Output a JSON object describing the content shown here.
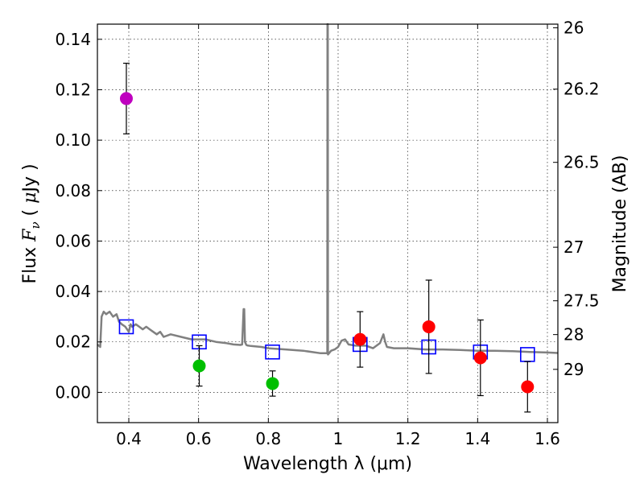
{
  "chart_data": {
    "type": "scatter",
    "xlabel": "Wavelength  λ (μm)",
    "ylabel": "Flux  F_ν  ( μJy )",
    "ylabel_right": "Magnitude (AB)",
    "xlim": [
      0.31,
      1.63
    ],
    "ylim": [
      -0.012,
      0.146
    ],
    "grid": true,
    "x_ticks": [
      0.4,
      0.6,
      0.8,
      1.0,
      1.2,
      1.4,
      1.6
    ],
    "x_tick_labels": [
      "0.4",
      "0.6",
      "0.8",
      "1",
      "1.2",
      "1.4",
      "1.6"
    ],
    "y_ticks": [
      0.0,
      0.02,
      0.04,
      0.06,
      0.08,
      0.1,
      0.12,
      0.14
    ],
    "y_tick_labels": [
      "0.00",
      "0.02",
      "0.04",
      "0.06",
      "0.08",
      "0.10",
      "0.12",
      "0.14"
    ],
    "mag_ticks": [
      26,
      26.2,
      26.5,
      27,
      27.5,
      28,
      29
    ],
    "mag_tick_labels": [
      "26",
      "26.2",
      "26.5",
      "27",
      "27.5",
      "28",
      "29"
    ],
    "observed": [
      {
        "x": 0.393,
        "y": 0.1165,
        "err": 0.014,
        "color": "#bf00bf"
      },
      {
        "x": 0.602,
        "y": 0.0105,
        "err": 0.008,
        "color": "#00bf00"
      },
      {
        "x": 0.812,
        "y": 0.0035,
        "err": 0.005,
        "color": "#00bf00"
      },
      {
        "x": 1.063,
        "y": 0.021,
        "err": 0.011,
        "color": "#ff0000"
      },
      {
        "x": 1.26,
        "y": 0.026,
        "err": 0.0185,
        "color": "#ff0000"
      },
      {
        "x": 1.408,
        "y": 0.0137,
        "err": 0.015,
        "color": "#ff0000"
      },
      {
        "x": 1.543,
        "y": 0.0022,
        "err": 0.01,
        "color": "#ff0000"
      }
    ],
    "model_photometry": {
      "color": "#0000ff",
      "points": [
        {
          "x": 0.393,
          "y": 0.026
        },
        {
          "x": 0.602,
          "y": 0.02
        },
        {
          "x": 0.812,
          "y": 0.016
        },
        {
          "x": 1.063,
          "y": 0.019
        },
        {
          "x": 1.26,
          "y": 0.018
        },
        {
          "x": 1.408,
          "y": 0.016
        },
        {
          "x": 1.543,
          "y": 0.015
        }
      ]
    },
    "sed_model": {
      "color": "#808080",
      "x": [
        0.31,
        0.318,
        0.322,
        0.328,
        0.335,
        0.345,
        0.355,
        0.365,
        0.372,
        0.38,
        0.39,
        0.4,
        0.405,
        0.41,
        0.42,
        0.43,
        0.44,
        0.45,
        0.46,
        0.47,
        0.48,
        0.49,
        0.5,
        0.52,
        0.55,
        0.58,
        0.6,
        0.62,
        0.65,
        0.68,
        0.7,
        0.72,
        0.725,
        0.729,
        0.731,
        0.733,
        0.737,
        0.74,
        0.75,
        0.78,
        0.8,
        0.85,
        0.9,
        0.95,
        0.969,
        0.9695,
        0.97,
        0.9705,
        0.971,
        0.98,
        0.99,
        1.0,
        1.01,
        1.02,
        1.03,
        1.05,
        1.08,
        1.1,
        1.12,
        1.13,
        1.135,
        1.14,
        1.16,
        1.2,
        1.25,
        1.3,
        1.35,
        1.4,
        1.45,
        1.5,
        1.55,
        1.6,
        1.63
      ],
      "y": [
        0.019,
        0.018,
        0.03,
        0.032,
        0.031,
        0.032,
        0.03,
        0.031,
        0.028,
        0.027,
        0.026,
        0.024,
        0.027,
        0.026,
        0.027,
        0.026,
        0.025,
        0.026,
        0.025,
        0.024,
        0.023,
        0.024,
        0.022,
        0.023,
        0.022,
        0.021,
        0.021,
        0.021,
        0.02,
        0.0195,
        0.019,
        0.0188,
        0.019,
        0.033,
        0.033,
        0.02,
        0.0188,
        0.0186,
        0.0184,
        0.018,
        0.0175,
        0.017,
        0.0165,
        0.0155,
        0.0155,
        0.146,
        0.146,
        0.146,
        0.015,
        0.0165,
        0.017,
        0.018,
        0.0205,
        0.021,
        0.019,
        0.0185,
        0.0185,
        0.0175,
        0.0195,
        0.023,
        0.02,
        0.018,
        0.0175,
        0.0175,
        0.017,
        0.017,
        0.0168,
        0.0165,
        0.0165,
        0.0163,
        0.016,
        0.0158,
        0.0156
      ]
    }
  }
}
